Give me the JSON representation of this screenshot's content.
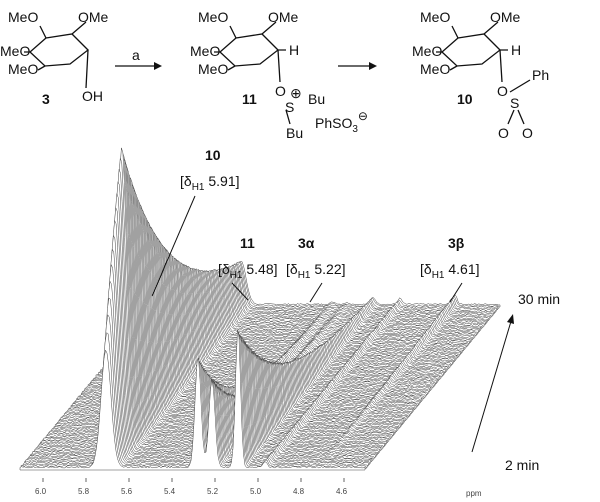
{
  "scheme": {
    "reagent": "a",
    "compound_1": {
      "label": "3",
      "texts": [
        "MeO",
        "OMe",
        "MeO",
        "MeO",
        "OH"
      ]
    },
    "compound_2": {
      "label": "11",
      "texts": [
        "MeO",
        "OMe",
        "MeO",
        "MeO",
        "H",
        "O",
        "S",
        "⊕",
        "Bu",
        "Bu",
        "PhSO",
        "3",
        "⊖"
      ]
    },
    "compound_3": {
      "label": "10",
      "texts": [
        "MeO",
        "OMe",
        "MeO",
        "MeO",
        "H",
        "O",
        "S",
        "Ph",
        "O",
        "O"
      ]
    }
  },
  "spectrum": {
    "annotations": [
      {
        "compound": "10",
        "open": "[δ",
        "sub": "H1",
        "rest": " 5.91]"
      },
      {
        "compound": "11",
        "open": "[δ",
        "sub": "H1",
        "rest": " 5.48]"
      },
      {
        "compound": "3α",
        "open": "[δ",
        "sub": "H1",
        "rest": " 5.22]"
      },
      {
        "compound": "3β",
        "open": "[δ",
        "sub": "H1",
        "rest": " 4.61]"
      }
    ],
    "time_end": "30 min",
    "time_start": "2 min",
    "axis_ticks": [
      "6.0",
      "5.8",
      "5.6",
      "5.4",
      "5.2",
      "5.0",
      "4.8",
      "4.6"
    ],
    "axis_unit": "ppm"
  }
}
